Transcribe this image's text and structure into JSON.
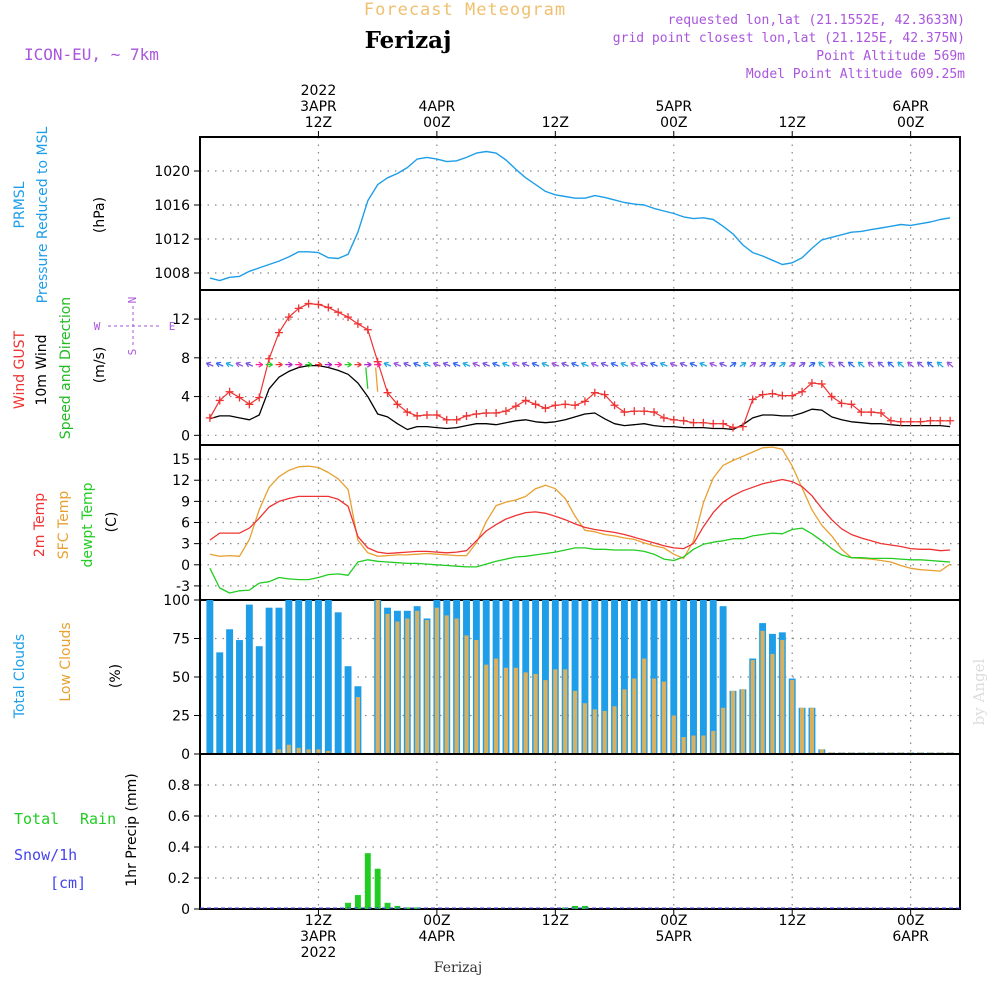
{
  "header": {
    "title": "Forecast Meteogram",
    "location": "Ferizaj",
    "model": "ICON-EU, ~ 7km",
    "info": [
      "requested lon,lat (21.1552E, 42.3633N)",
      "grid point closest lon,lat (21.125E, 42.375N)",
      "Point Altitude 569m",
      "Model Point Altitude 609.25m"
    ]
  },
  "footer": {
    "location": "Ferizaj",
    "watermark": "by Angel"
  },
  "colors": {
    "pressure": "#1e9ee8",
    "gust": "#ee3333",
    "wind": "#000000",
    "wind_label_green": "#22bb22",
    "temp2m": "#ee3333",
    "sfc_temp": "#e8a030",
    "dewpt": "#22cc22",
    "total_clouds": "#1e9ee8",
    "low_clouds": "#d8b060",
    "rain": "#22cc22",
    "snow": "#4444ee",
    "info": "#aa55dd",
    "title": "#f0c070"
  },
  "time_axis": {
    "top_labels": [
      {
        "x": 0,
        "lines": [
          "2022",
          "3APR",
          "12Z"
        ]
      },
      {
        "x": 12,
        "lines": [
          "4APR",
          "00Z"
        ]
      },
      {
        "x": 24,
        "lines": [
          "12Z"
        ]
      },
      {
        "x": 36,
        "lines": [
          "5APR",
          "00Z"
        ]
      },
      {
        "x": 48,
        "lines": [
          "12Z"
        ]
      },
      {
        "x": 60,
        "lines": [
          "6APR",
          "00Z"
        ]
      }
    ],
    "bottom_labels": [
      {
        "x": 0,
        "lines": [
          "12Z",
          "3APR",
          "2022"
        ]
      },
      {
        "x": 12,
        "lines": [
          "00Z",
          "4APR"
        ]
      },
      {
        "x": 24,
        "lines": [
          "12Z"
        ]
      },
      {
        "x": 36,
        "lines": [
          "00Z",
          "5APR"
        ]
      },
      {
        "x": 48,
        "lines": [
          "12Z"
        ]
      },
      {
        "x": 60,
        "lines": [
          "00Z",
          "6APR"
        ]
      }
    ]
  },
  "chart_data": [
    {
      "type": "line",
      "name": "pressure",
      "labels": [
        "PRMSL",
        "Pressure Reduced to MSL",
        "(hPa)"
      ],
      "ylim": [
        1006,
        1024
      ],
      "yticks": [
        1008,
        1012,
        1016,
        1020
      ],
      "x": [
        -11,
        -10,
        -9,
        -8,
        -7,
        -6,
        -5,
        -4,
        -3,
        -2,
        -1,
        0,
        1,
        2,
        3,
        4,
        5,
        6,
        7,
        8,
        9,
        10,
        11,
        12,
        13,
        14,
        15,
        16,
        17,
        18,
        19,
        20,
        21,
        22,
        23,
        24,
        25,
        26,
        27,
        28,
        29,
        30,
        31,
        32,
        33,
        34,
        35,
        36,
        37,
        38,
        39,
        40,
        41,
        42,
        43,
        44,
        45,
        46,
        47,
        48,
        49,
        50,
        51,
        52,
        53,
        54,
        55,
        56,
        57,
        58,
        59,
        60,
        61,
        62,
        63,
        64
      ],
      "values": [
        1007.4,
        1007.1,
        1007.5,
        1007.6,
        1008.2,
        1008.6,
        1009.0,
        1009.4,
        1009.9,
        1010.5,
        1010.5,
        1010.4,
        1009.8,
        1009.7,
        1010.2,
        1012.8,
        1016.5,
        1018.4,
        1019.2,
        1019.7,
        1020.4,
        1021.4,
        1021.6,
        1021.4,
        1021.1,
        1021.2,
        1021.6,
        1022.1,
        1022.3,
        1022.1,
        1021.3,
        1020.2,
        1019.2,
        1018.4,
        1017.6,
        1017.2,
        1017.0,
        1016.8,
        1016.8,
        1017.1,
        1016.9,
        1016.6,
        1016.3,
        1016.1,
        1016.0,
        1015.6,
        1015.3,
        1015.0,
        1014.6,
        1014.4,
        1014.5,
        1014.3,
        1013.5,
        1012.6,
        1011.3,
        1010.4,
        1010.0,
        1009.5,
        1009.0,
        1009.2,
        1009.8,
        1010.9,
        1011.9,
        1012.2,
        1012.5,
        1012.8,
        1012.9,
        1013.1,
        1013.3,
        1013.5,
        1013.7,
        1013.6,
        1013.8,
        1014.0,
        1014.3,
        1014.5
      ]
    },
    {
      "type": "line",
      "name": "wind",
      "labels": [
        "Wind GUST",
        "10m Wind",
        "Speed and Direction",
        "(m/s)"
      ],
      "compass": {
        "n": "N",
        "s": "S",
        "w": "W",
        "e": "E"
      },
      "ylim": [
        -1,
        15
      ],
      "yticks": [
        0,
        4,
        8,
        12
      ],
      "gust_x": [
        -11,
        -10,
        -9,
        -8,
        -7,
        -6,
        -5,
        -4,
        -3,
        -2,
        -1,
        0,
        1,
        2,
        3,
        4,
        5,
        6,
        7,
        8,
        9,
        10,
        11,
        12,
        13,
        14,
        15,
        16,
        17,
        18,
        19,
        20,
        21,
        22,
        23,
        24,
        25,
        26,
        27,
        28,
        29,
        30,
        31,
        32,
        33,
        34,
        35,
        36,
        37,
        38,
        39,
        40,
        41,
        42,
        43,
        44,
        45,
        46,
        47,
        48,
        49,
        50,
        51,
        52,
        53,
        54,
        55,
        56,
        57,
        58,
        59,
        60,
        61,
        62,
        63,
        64
      ],
      "gust": [
        1.8,
        3.6,
        4.5,
        3.9,
        3.2,
        3.9,
        7.9,
        10.6,
        12.2,
        13.1,
        13.6,
        13.5,
        13.2,
        12.7,
        12.2,
        11.5,
        10.9,
        7.6,
        4.4,
        3.2,
        2.4,
        2.0,
        2.1,
        2.1,
        1.6,
        1.6,
        2.0,
        2.2,
        2.3,
        2.3,
        2.5,
        3.0,
        3.6,
        3.2,
        2.8,
        3.1,
        3.2,
        3.1,
        3.5,
        4.4,
        4.2,
        3.1,
        2.4,
        2.5,
        2.5,
        2.4,
        1.8,
        1.6,
        1.5,
        1.3,
        1.3,
        1.2,
        1.2,
        0.8,
        0.9,
        3.7,
        4.2,
        4.3,
        4.1,
        4.1,
        4.5,
        5.4,
        5.3,
        4.0,
        3.3,
        3.2,
        2.4,
        2.4,
        2.3,
        1.5,
        1.4,
        1.4,
        1.4,
        1.5,
        1.5,
        1.5
      ],
      "wind_x": [
        -11,
        -10,
        -9,
        -8,
        -7,
        -6,
        -5,
        -4,
        -3,
        -2,
        -1,
        0,
        1,
        2,
        3,
        4,
        5,
        6,
        7,
        8,
        9,
        10,
        11,
        12,
        13,
        14,
        15,
        16,
        17,
        18,
        19,
        20,
        21,
        22,
        23,
        24,
        25,
        26,
        27,
        28,
        29,
        30,
        31,
        32,
        33,
        34,
        35,
        36,
        37,
        38,
        39,
        40,
        41,
        42,
        43,
        44,
        45,
        46,
        47,
        48,
        49,
        50,
        51,
        52,
        53,
        54,
        55,
        56,
        57,
        58,
        59,
        60,
        61,
        62,
        63,
        64
      ],
      "wind": [
        1.7,
        2.0,
        2.0,
        1.8,
        1.6,
        2.1,
        4.8,
        6.0,
        6.6,
        7.0,
        7.2,
        7.2,
        7.0,
        6.7,
        6.3,
        5.4,
        4.0,
        2.2,
        1.9,
        1.2,
        0.6,
        0.9,
        0.9,
        0.8,
        0.7,
        0.8,
        1.0,
        1.2,
        1.2,
        1.1,
        1.3,
        1.5,
        1.6,
        1.4,
        1.3,
        1.4,
        1.6,
        1.9,
        2.2,
        2.3,
        1.7,
        1.2,
        1.0,
        1.1,
        1.2,
        1.0,
        0.9,
        0.9,
        0.8,
        0.8,
        0.8,
        0.7,
        0.7,
        0.6,
        1.1,
        1.8,
        2.1,
        2.1,
        2.0,
        2.0,
        2.3,
        2.7,
        2.6,
        1.9,
        1.6,
        1.4,
        1.3,
        1.2,
        1.2,
        1.1,
        1.0,
        1.0,
        1.0,
        1.0,
        1.0,
        0.9
      ]
    },
    {
      "type": "line",
      "name": "temperature",
      "labels": [
        "2m Temp",
        "SFC Temp",
        "dewpt Temp",
        "(C)"
      ],
      "ylim": [
        -5,
        17
      ],
      "yticks": [
        -3,
        0,
        3,
        6,
        9,
        12,
        15
      ],
      "x": [
        -11,
        -10,
        -9,
        -8,
        -7,
        -6,
        -5,
        -4,
        -3,
        -2,
        -1,
        0,
        1,
        2,
        3,
        4,
        5,
        6,
        7,
        8,
        9,
        10,
        11,
        12,
        13,
        14,
        15,
        16,
        17,
        18,
        19,
        20,
        21,
        22,
        23,
        24,
        25,
        26,
        27,
        28,
        29,
        30,
        31,
        32,
        33,
        34,
        35,
        36,
        37,
        38,
        39,
        40,
        41,
        42,
        43,
        44,
        45,
        46,
        47,
        48,
        49,
        50,
        51,
        52,
        53,
        54,
        55,
        56,
        57,
        58,
        59,
        60,
        61,
        62,
        63,
        64
      ],
      "series": [
        {
          "name": "2m Temp",
          "values": [
            3.5,
            4.5,
            4.5,
            4.5,
            5.2,
            6.6,
            8.2,
            9.0,
            9.4,
            9.7,
            9.7,
            9.7,
            9.7,
            9.3,
            8.3,
            4.0,
            2.4,
            1.8,
            1.6,
            1.7,
            1.8,
            1.9,
            1.9,
            1.8,
            1.7,
            1.8,
            2.0,
            3.4,
            4.8,
            5.7,
            6.5,
            7.0,
            7.4,
            7.5,
            7.3,
            6.9,
            6.4,
            5.8,
            5.3,
            5.0,
            4.8,
            4.6,
            4.3,
            3.9,
            3.5,
            3.1,
            2.7,
            2.4,
            2.3,
            3.0,
            5.4,
            7.4,
            8.9,
            9.8,
            10.5,
            11.0,
            11.5,
            11.8,
            12.1,
            11.8,
            11.1,
            9.8,
            8.0,
            6.4,
            5.1,
            4.3,
            3.8,
            3.4,
            3.0,
            2.8,
            2.6,
            2.3,
            2.2,
            2.2,
            2.0,
            2.1
          ]
        },
        {
          "name": "SFC Temp",
          "values": [
            1.5,
            1.2,
            1.3,
            1.2,
            3.6,
            7.8,
            11.0,
            12.5,
            13.4,
            13.9,
            14.0,
            13.8,
            13.1,
            12.2,
            10.7,
            3.5,
            1.7,
            1.2,
            1.3,
            1.4,
            1.4,
            1.5,
            1.6,
            1.5,
            1.4,
            1.3,
            1.3,
            3.1,
            6.1,
            8.4,
            8.9,
            9.2,
            9.7,
            10.8,
            11.3,
            10.8,
            9.4,
            6.9,
            4.9,
            4.7,
            4.3,
            4.1,
            3.8,
            3.6,
            3.1,
            2.7,
            2.4,
            1.5,
            0.9,
            3.4,
            8.8,
            12.3,
            14.1,
            14.8,
            15.4,
            16.0,
            16.6,
            16.7,
            16.4,
            14.0,
            10.9,
            7.8,
            5.6,
            4.1,
            2.2,
            1.0,
            0.9,
            0.8,
            0.6,
            0.4,
            -0.1,
            -0.5,
            -0.7,
            -0.8,
            -0.9,
            0.1
          ]
        },
        {
          "name": "dewpt Temp",
          "values": [
            -0.5,
            -3.3,
            -4.0,
            -3.7,
            -3.6,
            -2.6,
            -2.4,
            -1.8,
            -2.0,
            -2.1,
            -2.1,
            -1.8,
            -1.4,
            -1.3,
            -1.5,
            0.4,
            0.7,
            0.5,
            0.4,
            0.3,
            0.2,
            0.2,
            0.1,
            0.0,
            -0.1,
            -0.2,
            -0.3,
            -0.3,
            0.1,
            0.5,
            0.8,
            1.1,
            1.2,
            1.4,
            1.6,
            1.8,
            2.1,
            2.4,
            2.4,
            2.2,
            2.2,
            2.1,
            2.1,
            2.1,
            1.9,
            1.5,
            0.8,
            0.6,
            1.1,
            2.2,
            2.9,
            3.2,
            3.4,
            3.7,
            3.7,
            4.1,
            4.3,
            4.5,
            4.4,
            5.0,
            5.2,
            4.4,
            3.4,
            2.3,
            1.4,
            1.0,
            1.0,
            0.9,
            0.9,
            0.9,
            0.8,
            0.7,
            0.7,
            0.6,
            0.5,
            0.4
          ]
        }
      ]
    },
    {
      "type": "bar",
      "name": "clouds",
      "labels": [
        "Total Clouds",
        "Low Clouds",
        "(%)"
      ],
      "ylim": [
        0,
        100
      ],
      "yticks": [
        0,
        25,
        50,
        75,
        100
      ],
      "x": [
        -11,
        -10,
        -9,
        -8,
        -7,
        -6,
        -5,
        -4,
        -3,
        -2,
        -1,
        0,
        1,
        2,
        3,
        4,
        5,
        6,
        7,
        8,
        9,
        10,
        11,
        12,
        13,
        14,
        15,
        16,
        17,
        18,
        19,
        20,
        21,
        22,
        23,
        24,
        25,
        26,
        27,
        28,
        29,
        30,
        31,
        32,
        33,
        34,
        35,
        36,
        37,
        38,
        39,
        40,
        41,
        42,
        43,
        44,
        45,
        46,
        47,
        48,
        49,
        50,
        51,
        52,
        53,
        54,
        55,
        56,
        57,
        58,
        59,
        60,
        61,
        62,
        63,
        64
      ],
      "series": [
        {
          "name": "Total Clouds",
          "values": [
            100,
            66,
            81,
            74,
            97,
            70,
            95,
            95,
            100,
            100,
            100,
            100,
            100,
            92,
            57,
            44,
            0,
            100,
            95,
            93,
            93,
            96,
            88,
            100,
            100,
            100,
            100,
            100,
            100,
            100,
            100,
            100,
            100,
            100,
            100,
            100,
            100,
            100,
            100,
            100,
            100,
            100,
            100,
            100,
            100,
            100,
            100,
            100,
            100,
            100,
            100,
            100,
            96,
            41,
            42,
            62,
            85,
            78,
            79,
            49,
            30,
            30,
            3,
            1,
            1,
            1,
            1,
            1,
            1,
            1,
            1,
            1,
            1,
            1,
            1,
            1
          ]
        },
        {
          "name": "Low Clouds",
          "values": [
            0,
            0,
            0,
            0,
            0,
            0,
            0,
            3,
            6,
            4,
            3,
            3,
            2,
            0,
            0,
            37,
            0,
            100,
            91,
            86,
            88,
            93,
            87,
            95,
            90,
            88,
            77,
            74,
            58,
            62,
            56,
            56,
            53,
            52,
            48,
            55,
            55,
            41,
            33,
            29,
            28,
            31,
            42,
            49,
            62,
            49,
            47,
            25,
            11,
            12,
            12,
            15,
            30,
            41,
            42,
            61,
            80,
            65,
            74,
            48,
            30,
            30,
            3,
            1,
            1,
            1,
            1,
            1,
            1,
            1,
            1,
            1,
            1,
            1,
            1,
            1
          ]
        }
      ]
    },
    {
      "type": "bar",
      "name": "precipitation",
      "labels": [
        "Total",
        "Rain",
        "Snow/1h",
        "[cm]",
        "1hr Precip (mm)"
      ],
      "ylim": [
        0,
        1.0
      ],
      "yticks": [
        0,
        0.2,
        0.4,
        0.6,
        0.8
      ],
      "ytick_labels": [
        "0",
        "0.2",
        "0.4",
        "0.6",
        "0.8"
      ],
      "x": [
        3,
        4,
        5,
        6,
        7,
        8,
        9,
        10,
        25,
        26,
        27
      ],
      "values": [
        0.04,
        0.09,
        0.36,
        0.26,
        0.04,
        0.02,
        0.01,
        0.01,
        0.01,
        0.02,
        0.02
      ]
    }
  ]
}
